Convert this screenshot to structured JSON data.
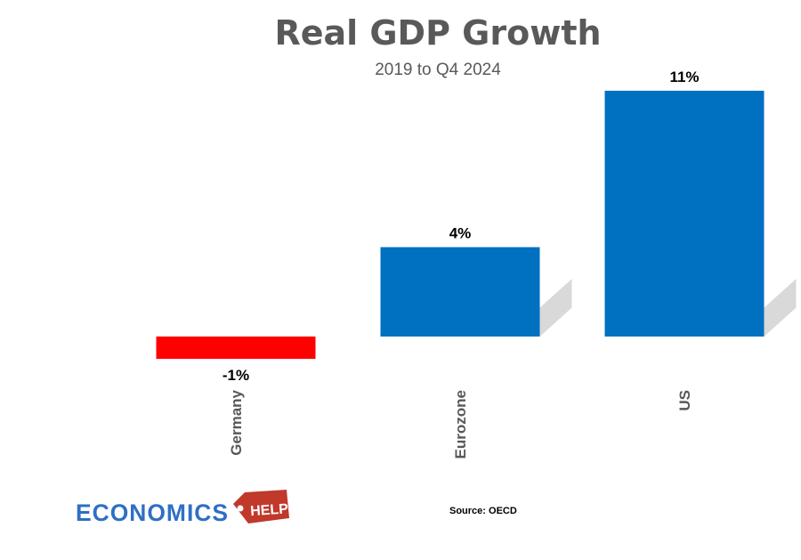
{
  "chart_data": {
    "type": "bar",
    "title": "Real GDP Growth",
    "subtitle": "2019 to Q4 2024",
    "categories": [
      "Germany",
      "Eurozone",
      "US"
    ],
    "values": [
      -1,
      4,
      11
    ],
    "data_labels": [
      "-1%",
      "4%",
      "11%"
    ],
    "unit": "%",
    "colors": [
      "#ff0000",
      "#0070c0",
      "#0070c0"
    ],
    "ylim": [
      -1.5,
      11.5
    ],
    "grid": false,
    "legend": "none",
    "category_label_orientation": "vertical"
  },
  "source": "Source: OECD",
  "logo": {
    "word": "ECONOMICS",
    "tag": "HELP",
    "word_color": "#2f6fc4",
    "tag_color": "#c0392b"
  }
}
